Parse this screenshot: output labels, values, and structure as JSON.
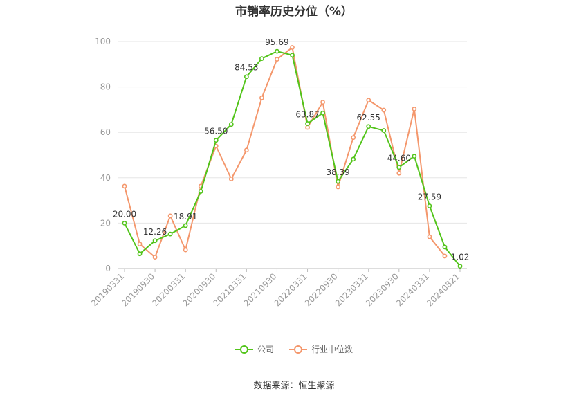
{
  "chart_data": {
    "type": "line",
    "title": "市销率历史分位（%）",
    "ylim": [
      0,
      100
    ],
    "yticks": [
      0,
      20,
      40,
      60,
      80,
      100
    ],
    "grid": true,
    "legend_position": "bottom",
    "xtick_labels": [
      "20190331",
      "20190930",
      "20200331",
      "20200930",
      "20210331",
      "20210930",
      "20220331",
      "20220930",
      "20230331",
      "20230930",
      "20240331",
      "20240821"
    ],
    "series": [
      {
        "name": "公司",
        "color": "#52c41a",
        "values": [
          20.0,
          6.5,
          12.26,
          15.2,
          18.91,
          34.0,
          56.5,
          63.5,
          84.53,
          92.5,
          95.69,
          94.0,
          63.87,
          68.5,
          38.39,
          48.2,
          62.55,
          60.8,
          44.6,
          49.5,
          27.59,
          9.5,
          1.02
        ],
        "labels": {
          "0": "20.00",
          "2": "12.26",
          "4": "18.91",
          "6": "56.50",
          "8": "84.53",
          "10": "95.69",
          "12": "63.87",
          "14": "38.39",
          "16": "62.55",
          "18": "44.60",
          "20": "27.59",
          "22": "1.02"
        }
      },
      {
        "name": "行业中位数",
        "color": "#f4976c",
        "values": [
          36.3,
          10.8,
          5.0,
          23.2,
          8.2,
          36.3,
          54.0,
          39.5,
          52.2,
          75.2,
          92.2,
          97.4,
          62.2,
          73.3,
          36.0,
          57.7,
          74.2,
          69.8,
          42.0,
          70.3,
          14.0,
          5.5
        ]
      }
    ]
  },
  "footer": {
    "source": "数据来源：恒生聚源"
  }
}
